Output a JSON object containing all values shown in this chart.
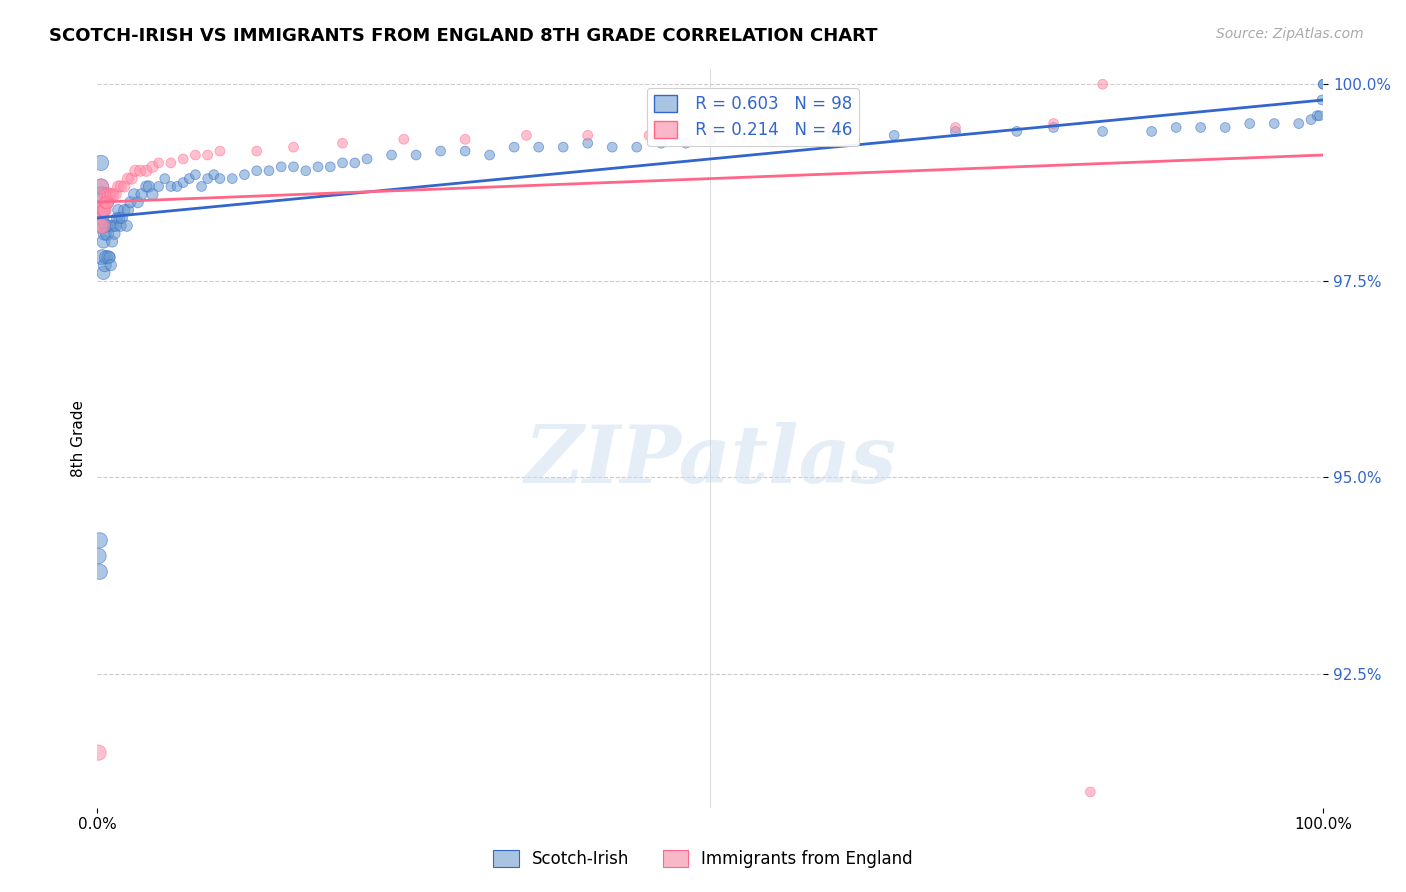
{
  "title": "SCOTCH-IRISH VS IMMIGRANTS FROM ENGLAND 8TH GRADE CORRELATION CHART",
  "source": "Source: ZipAtlas.com",
  "ylabel": "8th Grade",
  "ylabel_ticks": [
    "100.0%",
    "97.5%",
    "95.0%",
    "92.5%"
  ],
  "ylabel_tick_vals": [
    1.0,
    0.975,
    0.95,
    0.925
  ],
  "x_range": [
    0.0,
    1.0
  ],
  "y_range": [
    0.908,
    1.002
  ],
  "legend_blue_label": "Scotch-Irish",
  "legend_pink_label": "Immigrants from England",
  "r_blue": 0.603,
  "n_blue": 98,
  "r_pink": 0.214,
  "n_pink": 46,
  "blue_color": "#6699CC",
  "pink_color": "#FF8FAB",
  "line_blue": "#3366CC",
  "line_pink": "#FF6688",
  "blue_x": [
    0.001,
    0.002,
    0.002,
    0.003,
    0.003,
    0.003,
    0.004,
    0.004,
    0.004,
    0.005,
    0.005,
    0.005,
    0.006,
    0.006,
    0.007,
    0.007,
    0.008,
    0.008,
    0.009,
    0.01,
    0.01,
    0.011,
    0.012,
    0.013,
    0.014,
    0.015,
    0.016,
    0.017,
    0.018,
    0.019,
    0.02,
    0.022,
    0.024,
    0.025,
    0.027,
    0.03,
    0.033,
    0.036,
    0.04,
    0.042,
    0.045,
    0.05,
    0.055,
    0.06,
    0.065,
    0.07,
    0.075,
    0.08,
    0.085,
    0.09,
    0.095,
    0.1,
    0.11,
    0.12,
    0.13,
    0.14,
    0.15,
    0.16,
    0.17,
    0.18,
    0.19,
    0.2,
    0.21,
    0.22,
    0.24,
    0.26,
    0.28,
    0.3,
    0.32,
    0.34,
    0.36,
    0.38,
    0.4,
    0.42,
    0.44,
    0.46,
    0.48,
    0.5,
    0.55,
    0.6,
    0.65,
    0.7,
    0.75,
    0.78,
    0.82,
    0.86,
    0.88,
    0.9,
    0.92,
    0.94,
    0.96,
    0.98,
    0.99,
    0.995,
    0.997,
    0.999,
    1.0,
    1.0
  ],
  "blue_y": [
    0.94,
    0.942,
    0.938,
    0.99,
    0.987,
    0.983,
    0.986,
    0.982,
    0.978,
    0.984,
    0.98,
    0.976,
    0.981,
    0.977,
    0.982,
    0.978,
    0.985,
    0.981,
    0.978,
    0.982,
    0.978,
    0.977,
    0.98,
    0.982,
    0.981,
    0.982,
    0.983,
    0.984,
    0.983,
    0.982,
    0.983,
    0.984,
    0.982,
    0.984,
    0.985,
    0.986,
    0.985,
    0.986,
    0.987,
    0.987,
    0.986,
    0.987,
    0.988,
    0.987,
    0.987,
    0.9875,
    0.988,
    0.9885,
    0.987,
    0.988,
    0.9885,
    0.988,
    0.988,
    0.9885,
    0.989,
    0.989,
    0.9895,
    0.9895,
    0.989,
    0.9895,
    0.9895,
    0.99,
    0.99,
    0.9905,
    0.991,
    0.991,
    0.9915,
    0.9915,
    0.991,
    0.992,
    0.992,
    0.992,
    0.9925,
    0.992,
    0.992,
    0.9925,
    0.9925,
    0.993,
    0.993,
    0.9935,
    0.9935,
    0.994,
    0.994,
    0.9945,
    0.994,
    0.994,
    0.9945,
    0.9945,
    0.9945,
    0.995,
    0.995,
    0.995,
    0.9955,
    0.996,
    0.996,
    0.998,
    1.0,
    1.0
  ],
  "pink_x": [
    0.001,
    0.002,
    0.003,
    0.003,
    0.004,
    0.004,
    0.005,
    0.005,
    0.006,
    0.007,
    0.007,
    0.008,
    0.009,
    0.01,
    0.011,
    0.013,
    0.015,
    0.017,
    0.019,
    0.022,
    0.025,
    0.028,
    0.031,
    0.035,
    0.04,
    0.045,
    0.05,
    0.06,
    0.07,
    0.08,
    0.09,
    0.1,
    0.13,
    0.16,
    0.2,
    0.25,
    0.3,
    0.35,
    0.4,
    0.45,
    0.5,
    0.6,
    0.7,
    0.78,
    0.81,
    0.82
  ],
  "pink_y": [
    0.915,
    0.982,
    0.985,
    0.987,
    0.982,
    0.984,
    0.984,
    0.984,
    0.984,
    0.986,
    0.985,
    0.985,
    0.986,
    0.986,
    0.986,
    0.986,
    0.986,
    0.987,
    0.987,
    0.987,
    0.988,
    0.988,
    0.989,
    0.989,
    0.989,
    0.9895,
    0.99,
    0.99,
    0.9905,
    0.991,
    0.991,
    0.9915,
    0.9915,
    0.992,
    0.9925,
    0.993,
    0.993,
    0.9935,
    0.9935,
    0.9935,
    0.994,
    0.9945,
    0.9945,
    0.995,
    0.91,
    1.0
  ],
  "blue_slope": 0.015,
  "blue_intercept": 0.983,
  "pink_slope": 0.006,
  "pink_intercept": 0.985
}
